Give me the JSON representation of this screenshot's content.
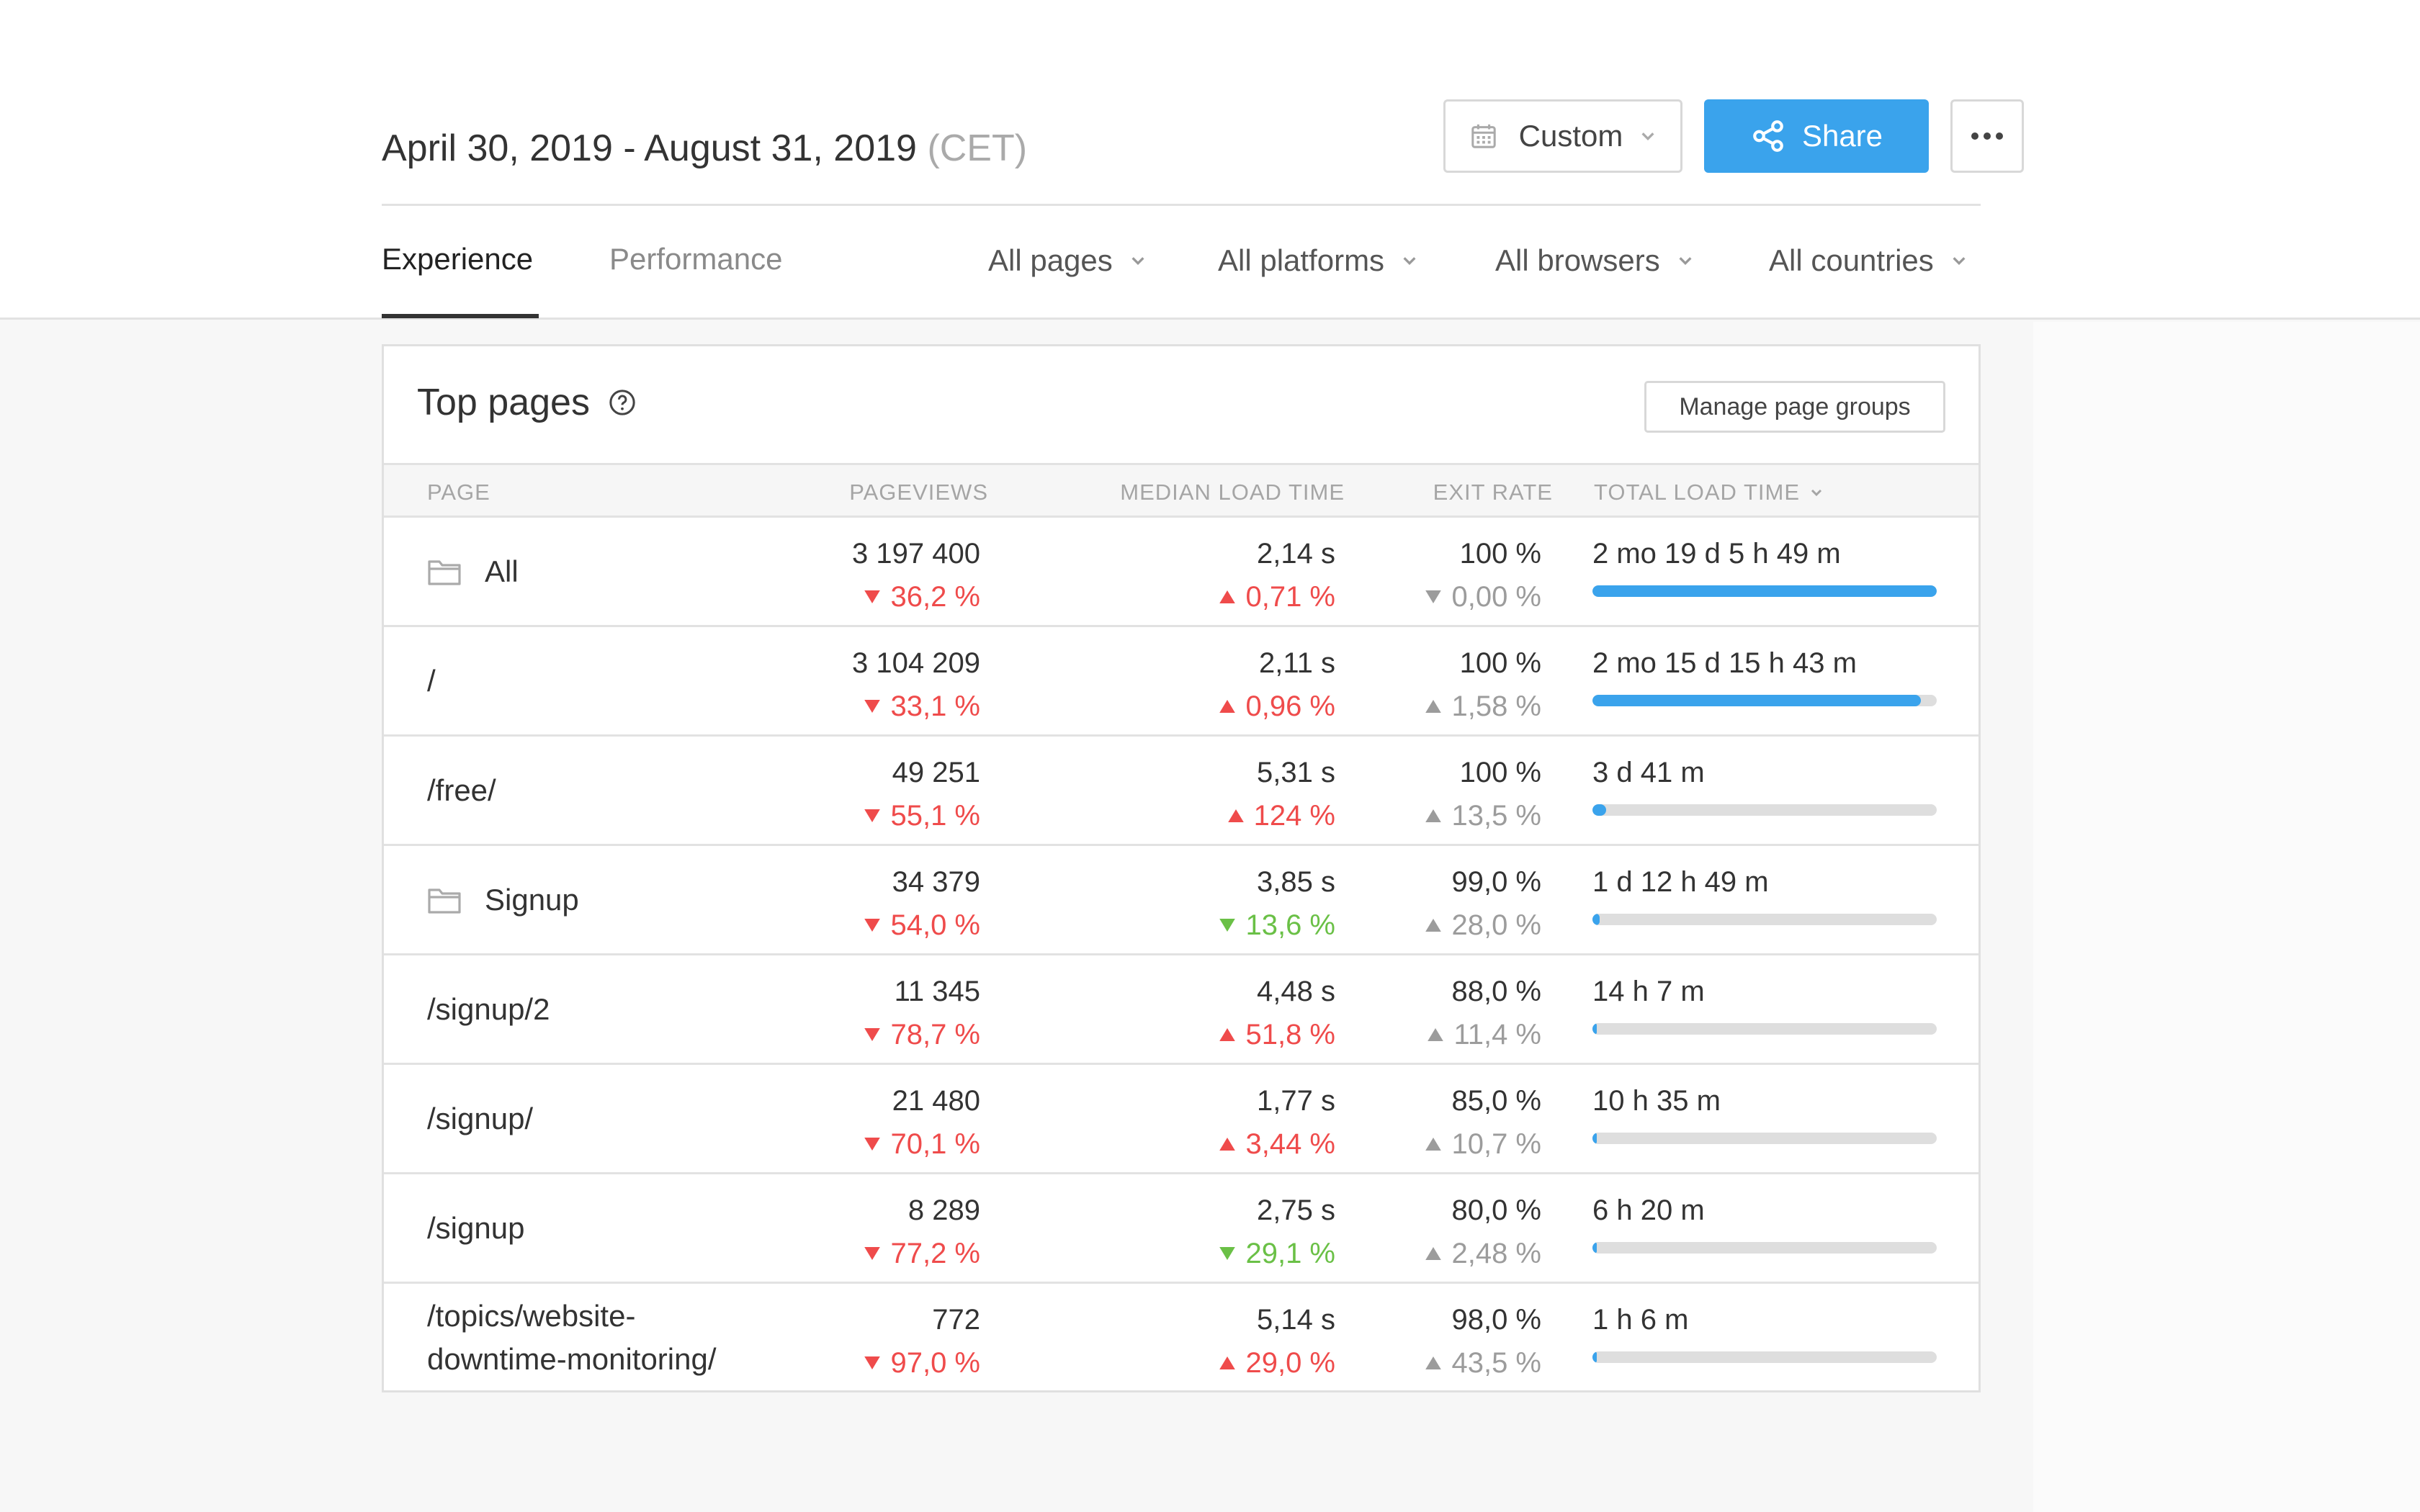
{
  "header": {
    "date_range": "April 30, 2019 - August 31, 2019",
    "timezone": "(CET)",
    "custom_label": "Custom",
    "share_label": "Share",
    "more_icon": "more-horizontal-icon"
  },
  "tabs": [
    {
      "label": "Experience",
      "active": true
    },
    {
      "label": "Performance",
      "active": false
    }
  ],
  "filters": [
    {
      "label": "All pages"
    },
    {
      "label": "All platforms"
    },
    {
      "label": "All browsers"
    },
    {
      "label": "All countries"
    }
  ],
  "colors": {
    "accent": "#3aa3ec",
    "negative": "#ef4b4b",
    "positive": "#6ac046",
    "neutral": "#9c9c9c"
  },
  "card": {
    "title": "Top pages",
    "manage_label": "Manage page groups"
  },
  "table": {
    "columns": {
      "page": "PAGE",
      "pageviews": "PAGEVIEWS",
      "median_load_time": "MEDIAN LOAD TIME",
      "exit_rate": "EXIT RATE",
      "total_load_time": "TOTAL LOAD TIME"
    },
    "rows": [
      {
        "page": "All",
        "group": true,
        "pageviews": "3 197 400",
        "pageviews_delta": "36,2 %",
        "pageviews_dir": "down",
        "pageviews_color": "red",
        "mlt": "2,14 s",
        "mlt_delta": "0,71 %",
        "mlt_dir": "up",
        "mlt_color": "red",
        "exit": "100 %",
        "exit_delta": "0,00 %",
        "exit_dir": "down",
        "exit_color": "gray",
        "tlt": "2 mo 19 d 5 h 49 m",
        "tlt_fraction": 1.0
      },
      {
        "page": "/",
        "group": false,
        "pageviews": "3 104 209",
        "pageviews_delta": "33,1 %",
        "pageviews_dir": "down",
        "pageviews_color": "red",
        "mlt": "2,11 s",
        "mlt_delta": "0,96 %",
        "mlt_dir": "up",
        "mlt_color": "red",
        "exit": "100 %",
        "exit_delta": "1,58 %",
        "exit_dir": "up",
        "exit_color": "gray",
        "tlt": "2 mo 15 d 15 h 43 m",
        "tlt_fraction": 0.955
      },
      {
        "page": "/free/",
        "group": false,
        "pageviews": "49 251",
        "pageviews_delta": "55,1 %",
        "pageviews_dir": "down",
        "pageviews_color": "red",
        "mlt": "5,31 s",
        "mlt_delta": "124 %",
        "mlt_dir": "up",
        "mlt_color": "red",
        "exit": "100 %",
        "exit_delta": "13,5 %",
        "exit_dir": "up",
        "exit_color": "gray",
        "tlt": "3 d 41 m",
        "tlt_fraction": 0.04
      },
      {
        "page": "Signup",
        "group": true,
        "pageviews": "34 379",
        "pageviews_delta": "54,0 %",
        "pageviews_dir": "down",
        "pageviews_color": "red",
        "mlt": "3,85 s",
        "mlt_delta": "13,6 %",
        "mlt_dir": "down",
        "mlt_color": "green",
        "exit": "99,0 %",
        "exit_delta": "28,0 %",
        "exit_dir": "up",
        "exit_color": "gray",
        "tlt": "1 d 12 h 49 m",
        "tlt_fraction": 0.02
      },
      {
        "page": "/signup/2",
        "group": false,
        "pageviews": "11 345",
        "pageviews_delta": "78,7 %",
        "pageviews_dir": "down",
        "pageviews_color": "red",
        "mlt": "4,48 s",
        "mlt_delta": "51,8 %",
        "mlt_dir": "up",
        "mlt_color": "red",
        "exit": "88,0 %",
        "exit_delta": "11,4 %",
        "exit_dir": "up",
        "exit_color": "gray",
        "tlt": "14 h 7 m",
        "tlt_fraction": 0.008
      },
      {
        "page": "/signup/",
        "group": false,
        "pageviews": "21 480",
        "pageviews_delta": "70,1 %",
        "pageviews_dir": "down",
        "pageviews_color": "red",
        "mlt": "1,77 s",
        "mlt_delta": "3,44 %",
        "mlt_dir": "up",
        "mlt_color": "red",
        "exit": "85,0 %",
        "exit_delta": "10,7 %",
        "exit_dir": "up",
        "exit_color": "gray",
        "tlt": "10 h 35 m",
        "tlt_fraction": 0.006
      },
      {
        "page": "/signup",
        "group": false,
        "pageviews": "8 289",
        "pageviews_delta": "77,2 %",
        "pageviews_dir": "down",
        "pageviews_color": "red",
        "mlt": "2,75 s",
        "mlt_delta": "29,1 %",
        "mlt_dir": "down",
        "mlt_color": "green",
        "exit": "80,0 %",
        "exit_delta": "2,48 %",
        "exit_dir": "up",
        "exit_color": "gray",
        "tlt": "6 h 20 m",
        "tlt_fraction": 0.004
      },
      {
        "page": "/topics/website-\ndowntime-monitoring/",
        "group": false,
        "pageviews": "772",
        "pageviews_delta": "97,0 %",
        "pageviews_dir": "down",
        "pageviews_color": "red",
        "mlt": "5,14 s",
        "mlt_delta": "29,0 %",
        "mlt_dir": "up",
        "mlt_color": "red",
        "exit": "98,0 %",
        "exit_delta": "43,5 %",
        "exit_dir": "up",
        "exit_color": "gray",
        "tlt": "1 h 6 m",
        "tlt_fraction": 0.001
      }
    ]
  }
}
